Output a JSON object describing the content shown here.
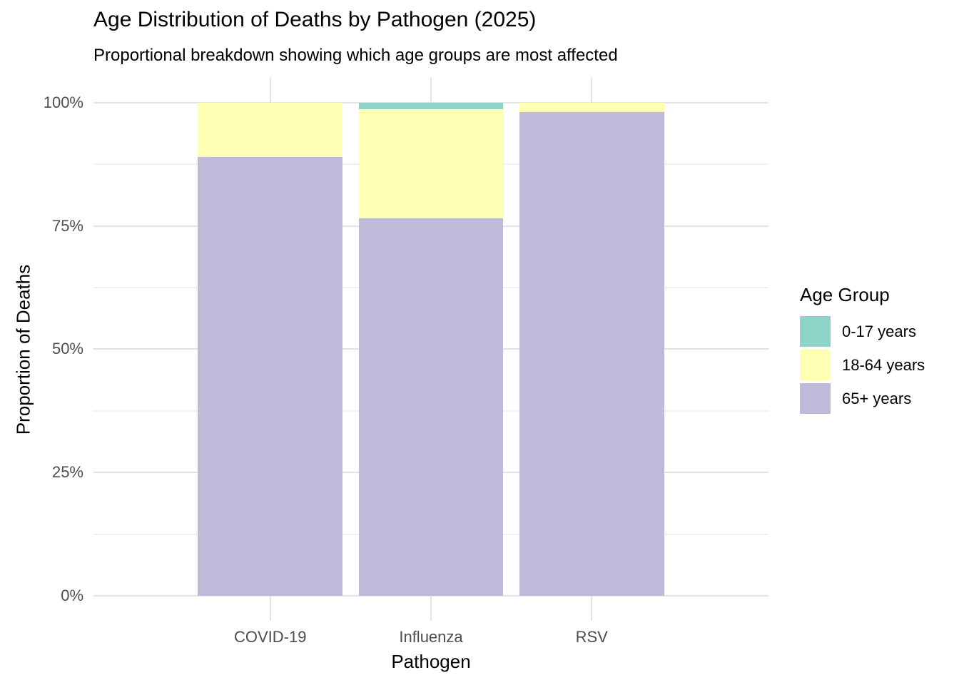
{
  "chart_data": {
    "type": "bar",
    "stacked": true,
    "percent_scale": true,
    "title": "Age Distribution of Deaths by Pathogen (2025)",
    "subtitle": "Proportional breakdown showing which age groups are most affected",
    "xlabel": "Pathogen",
    "ylabel": "Proportion of Deaths",
    "categories": [
      "COVID-19",
      "Influenza",
      "RSV"
    ],
    "series": [
      {
        "name": "0-17 years",
        "color": "#8DD3C7",
        "values": [
          0.0,
          1.4,
          0.0
        ]
      },
      {
        "name": "18-64 years",
        "color": "#FFFFB3",
        "values": [
          11.1,
          22.0,
          1.9
        ]
      },
      {
        "name": "65+ years",
        "color": "#BEBADA",
        "values": [
          88.9,
          76.6,
          98.1
        ]
      }
    ],
    "ylim": [
      0,
      100
    ],
    "y_tick_values": [
      0,
      25,
      50,
      75,
      100
    ],
    "y_tick_labels": [
      "0%",
      "25%",
      "50%",
      "75%",
      "100%"
    ],
    "grid": "major-and-minor, light gray on white",
    "legend_title": "Age Group",
    "legend_position": "right"
  },
  "layout_colors": {
    "background": "#FFFFFF",
    "grid_major": "#E3E3E3",
    "grid_minor": "#F1F1F1",
    "tick_text": "#4D4D4D",
    "title_text": "#000000"
  }
}
